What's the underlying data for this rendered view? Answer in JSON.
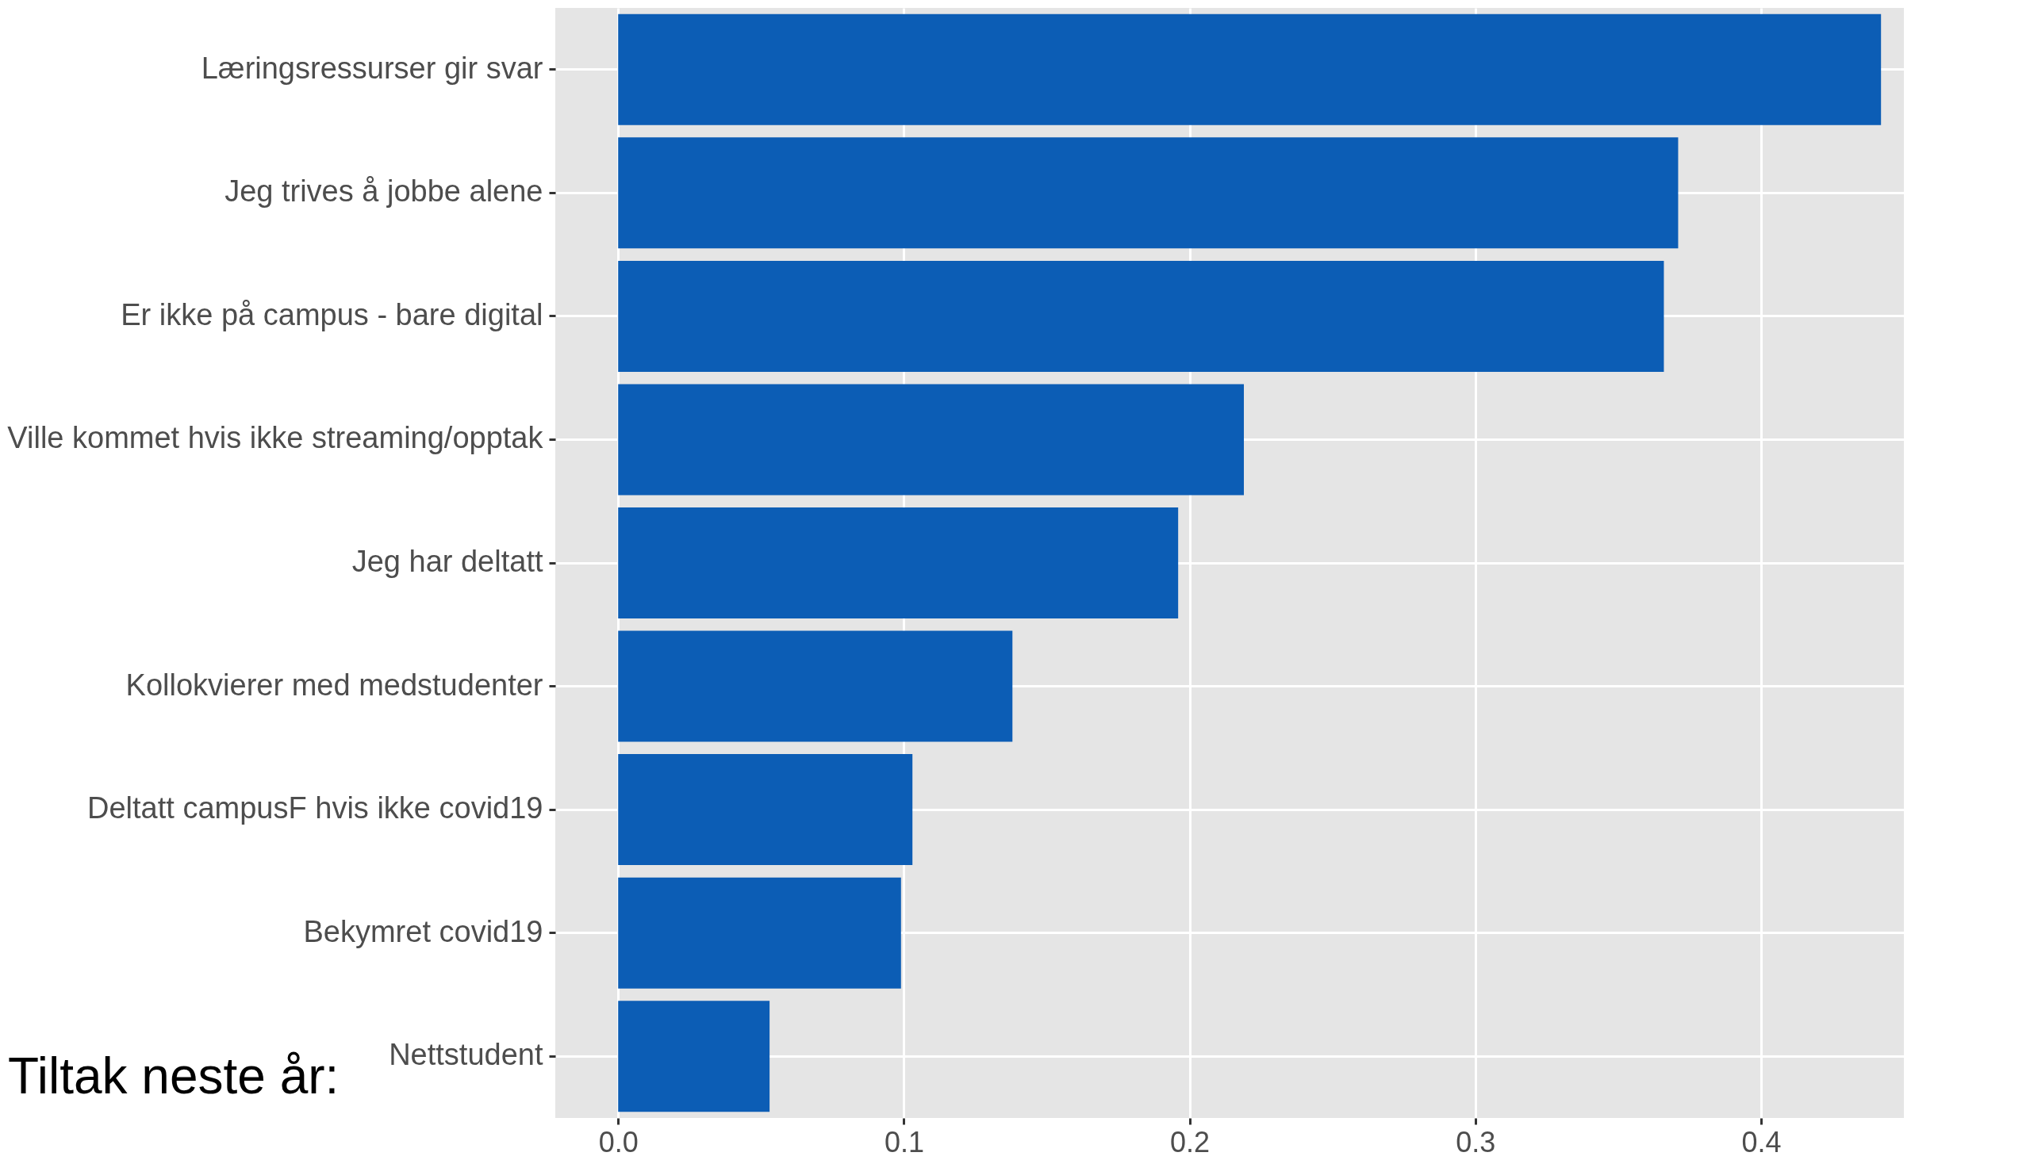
{
  "chart_data": {
    "type": "bar",
    "orientation": "horizontal",
    "categories": [
      "Læringsressurser gir svar",
      "Jeg trives å jobbe alene",
      "Er ikke på campus - bare digital",
      "Ville kommet hvis ikke streaming/opptak",
      "Jeg har deltatt",
      "Kollokvierer med medstudenter",
      "Deltatt campusF hvis ikke covid19",
      "Bekymret covid19",
      "Nettstudent"
    ],
    "values": [
      0.442,
      0.371,
      0.366,
      0.219,
      0.196,
      0.138,
      0.103,
      0.099,
      0.053
    ],
    "color": "#0c5db5",
    "xlim": [
      -0.022,
      0.45
    ],
    "xticks": [
      {
        "value": 0,
        "label": "0.0"
      },
      {
        "value": 0.1,
        "label": "0.1"
      },
      {
        "value": 0.2,
        "label": "0.2"
      },
      {
        "value": 0.3,
        "label": "0.3"
      },
      {
        "value": 0.4,
        "label": "0.4"
      }
    ],
    "grid": true,
    "annotations": [
      "Tiltak neste år:"
    ]
  }
}
